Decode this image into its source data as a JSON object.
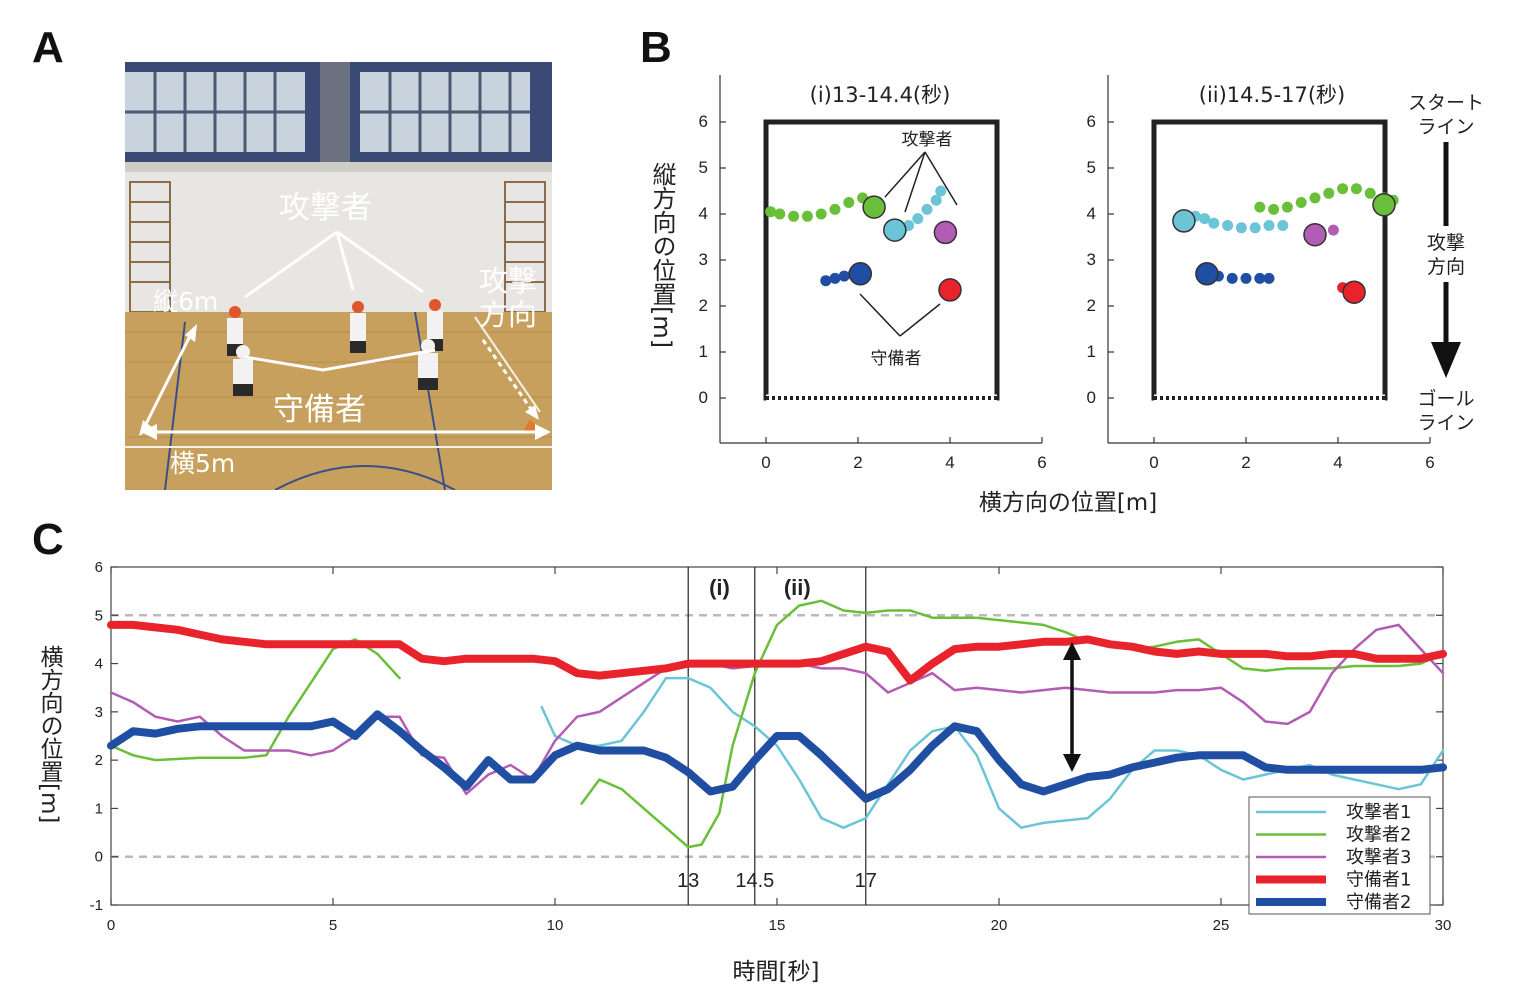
{
  "letters": {
    "a": "A",
    "b": "B",
    "c": "C"
  },
  "photo": {
    "attackers_label": "攻撃者",
    "defenders_label": "守備者",
    "vertical_label": "縦6m",
    "horizontal_label": "横5m",
    "direction_label_1": "攻撃",
    "direction_label_2": "方向"
  },
  "panelB": {
    "ylabel": "縦方向の位置[m]",
    "xlabel": "横方向の位置[m]",
    "sub_i": "(i)13-14.4(秒)",
    "sub_ii": "(ii)14.5-17(秒)",
    "attackers_label": "攻撃者",
    "defenders_label": "守備者",
    "start_line_1": "スタート",
    "start_line_2": "ライン",
    "attack_dir_1": "攻撃",
    "attack_dir_2": "方向",
    "goal_line_1": "ゴール",
    "goal_line_2": "ライン",
    "ticks": [
      "0",
      "1",
      "2",
      "3",
      "4",
      "5",
      "6"
    ],
    "xticks": [
      "0",
      "2",
      "4",
      "6"
    ]
  },
  "colors": {
    "attacker1": "#6cc5d6",
    "attacker2": "#6abf3a",
    "attacker3": "#b25cb4",
    "defender1": "#e8232b",
    "defender2": "#1f4ea3"
  },
  "chart_data": [
    {
      "type": "scatter",
      "panel": "B(i)",
      "title": "(i)13-14.4(秒)",
      "xlabel": "横方向の位置[m]",
      "ylabel": "縦方向の位置[m]",
      "xlim": [
        -1,
        6
      ],
      "ylim": [
        -1,
        7
      ],
      "series": [
        {
          "color": "#6abf3a",
          "points": [
            [
              0.1,
              4.05
            ],
            [
              0.3,
              4.0
            ],
            [
              0.6,
              3.95
            ],
            [
              0.9,
              3.95
            ],
            [
              1.2,
              4.0
            ],
            [
              1.5,
              4.1
            ],
            [
              1.8,
              4.25
            ],
            [
              2.1,
              4.35
            ]
          ],
          "end": [
            2.35,
            4.15
          ]
        },
        {
          "color": "#6cc5d6",
          "points": [
            [
              3.8,
              4.5
            ],
            [
              3.7,
              4.3
            ],
            [
              3.5,
              4.1
            ],
            [
              3.3,
              3.9
            ],
            [
              3.1,
              3.75
            ],
            [
              2.95,
              3.65
            ]
          ],
          "end": [
            2.8,
            3.65
          ]
        },
        {
          "color": "#b25cb4",
          "points": [],
          "end": [
            3.9,
            3.6
          ]
        },
        {
          "color": "#1f4ea3",
          "points": [
            [
              1.3,
              2.55
            ],
            [
              1.5,
              2.6
            ],
            [
              1.7,
              2.65
            ],
            [
              1.9,
              2.7
            ]
          ],
          "end": [
            2.05,
            2.7
          ]
        },
        {
          "color": "#e8232b",
          "points": [],
          "end": [
            4.0,
            2.35
          ]
        }
      ]
    },
    {
      "type": "scatter",
      "panel": "B(ii)",
      "title": "(ii)14.5-17(秒)",
      "xlabel": "横方向の位置[m]",
      "ylabel": "縦方向の位置[m]",
      "xlim": [
        -1,
        6
      ],
      "ylim": [
        -1,
        7
      ],
      "series": [
        {
          "color": "#6cc5d6",
          "points": [
            [
              2.8,
              3.75
            ],
            [
              2.5,
              3.75
            ],
            [
              2.2,
              3.7
            ],
            [
              1.9,
              3.7
            ],
            [
              1.6,
              3.75
            ],
            [
              1.3,
              3.8
            ],
            [
              1.1,
              3.9
            ],
            [
              0.9,
              3.95
            ]
          ],
          "end": [
            0.65,
            3.85
          ]
        },
        {
          "color": "#6abf3a",
          "points": [
            [
              2.3,
              4.15
            ],
            [
              2.6,
              4.1
            ],
            [
              2.9,
              4.15
            ],
            [
              3.2,
              4.25
            ],
            [
              3.5,
              4.35
            ],
            [
              3.8,
              4.45
            ],
            [
              4.1,
              4.55
            ],
            [
              4.4,
              4.55
            ],
            [
              4.7,
              4.45
            ],
            [
              5.0,
              4.35
            ],
            [
              5.2,
              4.3
            ]
          ],
          "end": [
            5.0,
            4.2
          ]
        },
        {
          "color": "#b25cb4",
          "points": [
            [
              3.9,
              3.65
            ]
          ],
          "end": [
            3.5,
            3.55
          ]
        },
        {
          "color": "#1f4ea3",
          "points": [
            [
              1.4,
              2.65
            ],
            [
              1.7,
              2.6
            ],
            [
              2.0,
              2.6
            ],
            [
              2.3,
              2.6
            ],
            [
              2.5,
              2.6
            ]
          ],
          "end": [
            1.15,
            2.7
          ]
        },
        {
          "color": "#e8232b",
          "points": [
            [
              4.1,
              2.4
            ]
          ],
          "end": [
            4.35,
            2.3
          ]
        }
      ]
    },
    {
      "type": "line",
      "panel": "C",
      "xlabel": "時間[秒]",
      "ylabel": "横方向の位置[m]",
      "xlim": [
        0,
        30
      ],
      "ylim": [
        -1,
        6
      ],
      "xticks": [
        "0",
        "5",
        "10",
        "15",
        "20",
        "25",
        "30"
      ],
      "yticks": [
        "-1",
        "0",
        "1",
        "2",
        "3",
        "4",
        "5",
        "6"
      ],
      "reference_lines": [
        0,
        5
      ],
      "intervals": [
        {
          "label": "(i)",
          "start": 13,
          "end": 14.5
        },
        {
          "label": "(ii)",
          "start": 14.5,
          "end": 17
        }
      ],
      "marker_labels": [
        "13",
        "14.5",
        "17"
      ],
      "series": [
        {
          "name": "攻撃者1",
          "color": "#6cc5d6",
          "width": 2.5,
          "x": [
            9.7,
            10,
            10.5,
            11,
            11.5,
            12,
            12.5,
            13,
            13.5,
            14,
            14.5,
            15,
            15.5,
            16,
            16.5,
            17,
            17.5,
            18,
            18.5,
            19,
            19.5,
            20,
            20.5,
            21,
            21.5,
            22,
            22.5,
            23,
            23.5,
            24,
            24.5,
            25,
            25.5,
            26,
            26.5,
            27,
            27.5,
            28,
            28.5,
            29,
            29.5,
            30
          ],
          "y": [
            3.1,
            2.5,
            2.3,
            2.3,
            2.4,
            3.0,
            3.7,
            3.7,
            3.5,
            3.0,
            2.7,
            2.3,
            1.6,
            0.8,
            0.6,
            0.8,
            1.5,
            2.2,
            2.6,
            2.7,
            2.1,
            1.0,
            0.6,
            0.7,
            0.75,
            0.8,
            1.2,
            1.8,
            2.2,
            2.2,
            2.1,
            1.8,
            1.6,
            1.7,
            1.8,
            1.9,
            1.7,
            1.6,
            1.5,
            1.4,
            1.5,
            2.2
          ]
        },
        {
          "name": "攻撃者2",
          "color": "#6abf3a",
          "width": 2.5,
          "x": [
            0,
            0.5,
            1,
            2,
            3,
            3.5,
            4,
            4.5,
            5,
            5.5,
            6,
            6.5
          ],
          "y": [
            2.3,
            2.1,
            2.0,
            2.05,
            2.05,
            2.1,
            2.9,
            3.6,
            4.3,
            4.5,
            4.2,
            3.7
          ]
        },
        {
          "name": "攻撃者2",
          "color": "#6abf3a",
          "width": 2.5,
          "x": [
            10.6,
            11,
            11.5,
            12,
            12.5,
            13,
            13.3,
            13.7,
            14,
            14.5,
            15,
            15.5,
            16,
            16.5,
            17,
            17.5,
            18,
            18.5,
            19,
            19.5,
            20,
            20.5,
            21,
            21.5,
            22,
            22.5,
            23,
            23.5,
            24,
            24.5,
            25,
            25.5,
            26,
            26.5,
            27,
            27.5,
            28,
            28.5,
            29,
            29.5,
            30
          ],
          "y": [
            1.1,
            1.6,
            1.4,
            1.0,
            0.6,
            0.2,
            0.25,
            0.9,
            2.3,
            3.8,
            4.8,
            5.2,
            5.3,
            5.1,
            5.05,
            5.1,
            5.1,
            4.95,
            4.95,
            4.95,
            4.9,
            4.85,
            4.8,
            4.65,
            4.45,
            4.35,
            4.3,
            4.35,
            4.45,
            4.5,
            4.2,
            3.9,
            3.85,
            3.9,
            3.9,
            3.9,
            3.95,
            3.95,
            3.95,
            4.0,
            4.2
          ]
        },
        {
          "name": "攻撃者3",
          "color": "#b25cb4",
          "width": 2.5,
          "x": [
            0,
            0.5,
            1,
            1.5,
            2,
            2.5,
            3,
            3.5,
            4,
            4.5,
            5,
            5.5,
            6,
            6.5,
            7,
            7.5,
            8,
            8.5,
            9,
            9.5,
            10,
            10.5,
            11,
            11.5,
            12,
            12.5,
            13,
            13.5,
            14,
            14.5,
            15,
            15.5,
            16,
            16.5,
            17,
            17.5,
            18,
            18.5,
            19,
            19.5,
            20,
            20.5,
            21,
            21.5,
            22,
            22.5,
            23,
            23.5,
            24,
            24.5,
            25,
            25.5,
            26,
            26.5,
            27,
            27.5,
            28,
            28.5,
            29,
            29.5,
            30
          ],
          "y": [
            3.4,
            3.2,
            2.9,
            2.8,
            2.9,
            2.5,
            2.2,
            2.2,
            2.2,
            2.1,
            2.2,
            2.5,
            2.9,
            2.9,
            2.1,
            2.05,
            1.3,
            1.7,
            1.9,
            1.6,
            2.4,
            2.9,
            3.0,
            3.3,
            3.6,
            3.9,
            4.0,
            4.0,
            3.9,
            3.95,
            4.0,
            4.0,
            3.9,
            3.9,
            3.8,
            3.4,
            3.6,
            3.8,
            3.45,
            3.5,
            3.45,
            3.4,
            3.45,
            3.5,
            3.45,
            3.4,
            3.4,
            3.4,
            3.45,
            3.45,
            3.5,
            3.2,
            2.8,
            2.75,
            3.0,
            3.8,
            4.3,
            4.7,
            4.8,
            4.3,
            3.8
          ]
        },
        {
          "name": "守備者1",
          "color": "#e8232b",
          "width": 8,
          "x": [
            0,
            0.5,
            1,
            1.5,
            2,
            2.5,
            3,
            3.5,
            4,
            4.5,
            5,
            5.5,
            6,
            6.5,
            7,
            7.5,
            8,
            8.5,
            9,
            9.5,
            10,
            10.5,
            11,
            11.5,
            12,
            12.5,
            13,
            13.5,
            14,
            14.5,
            15,
            15.5,
            16,
            16.5,
            17,
            17.5,
            18,
            18.5,
            19,
            19.5,
            20,
            20.5,
            21,
            21.5,
            22,
            22.5,
            23,
            23.5,
            24,
            24.5,
            25,
            25.5,
            26,
            26.5,
            27,
            27.5,
            28,
            28.5,
            29,
            29.5,
            30
          ],
          "y": [
            4.8,
            4.8,
            4.75,
            4.7,
            4.6,
            4.5,
            4.45,
            4.4,
            4.4,
            4.4,
            4.4,
            4.4,
            4.4,
            4.4,
            4.1,
            4.05,
            4.1,
            4.1,
            4.1,
            4.1,
            4.05,
            3.8,
            3.75,
            3.8,
            3.85,
            3.9,
            4.0,
            4.0,
            4.0,
            4.0,
            4.0,
            4.0,
            4.05,
            4.2,
            4.35,
            4.25,
            3.65,
            4.0,
            4.3,
            4.35,
            4.35,
            4.4,
            4.45,
            4.45,
            4.5,
            4.4,
            4.35,
            4.25,
            4.2,
            4.25,
            4.2,
            4.2,
            4.2,
            4.15,
            4.15,
            4.2,
            4.2,
            4.1,
            4.1,
            4.1,
            4.2
          ]
        },
        {
          "name": "守備者2",
          "color": "#1f4ea3",
          "width": 8,
          "x": [
            0,
            0.5,
            1,
            1.5,
            2,
            2.5,
            3,
            3.5,
            4,
            4.5,
            5,
            5.5,
            6,
            6.5,
            7,
            7.5,
            8,
            8.5,
            9,
            9.5,
            10,
            10.5,
            11,
            11.5,
            12,
            12.5,
            13,
            13.5,
            14,
            14.5,
            15,
            15.5,
            16,
            16.5,
            17,
            17.5,
            18,
            18.5,
            19,
            19.5,
            20,
            20.5,
            21,
            21.5,
            22,
            22.5,
            23,
            23.5,
            24,
            24.5,
            25,
            25.5,
            26,
            26.5,
            27,
            27.5,
            28,
            28.5,
            29,
            29.5,
            30
          ],
          "y": [
            2.3,
            2.6,
            2.55,
            2.65,
            2.7,
            2.7,
            2.7,
            2.7,
            2.7,
            2.7,
            2.8,
            2.5,
            2.95,
            2.6,
            2.2,
            1.85,
            1.45,
            2.0,
            1.6,
            1.6,
            2.1,
            2.3,
            2.2,
            2.2,
            2.2,
            2.05,
            1.75,
            1.35,
            1.45,
            2.0,
            2.5,
            2.5,
            2.1,
            1.65,
            1.2,
            1.4,
            1.8,
            2.3,
            2.7,
            2.6,
            2.0,
            1.5,
            1.35,
            1.5,
            1.65,
            1.7,
            1.85,
            1.95,
            2.05,
            2.1,
            2.1,
            2.1,
            1.85,
            1.8,
            1.8,
            1.8,
            1.8,
            1.8,
            1.8,
            1.8,
            1.85
          ]
        }
      ]
    }
  ]
}
